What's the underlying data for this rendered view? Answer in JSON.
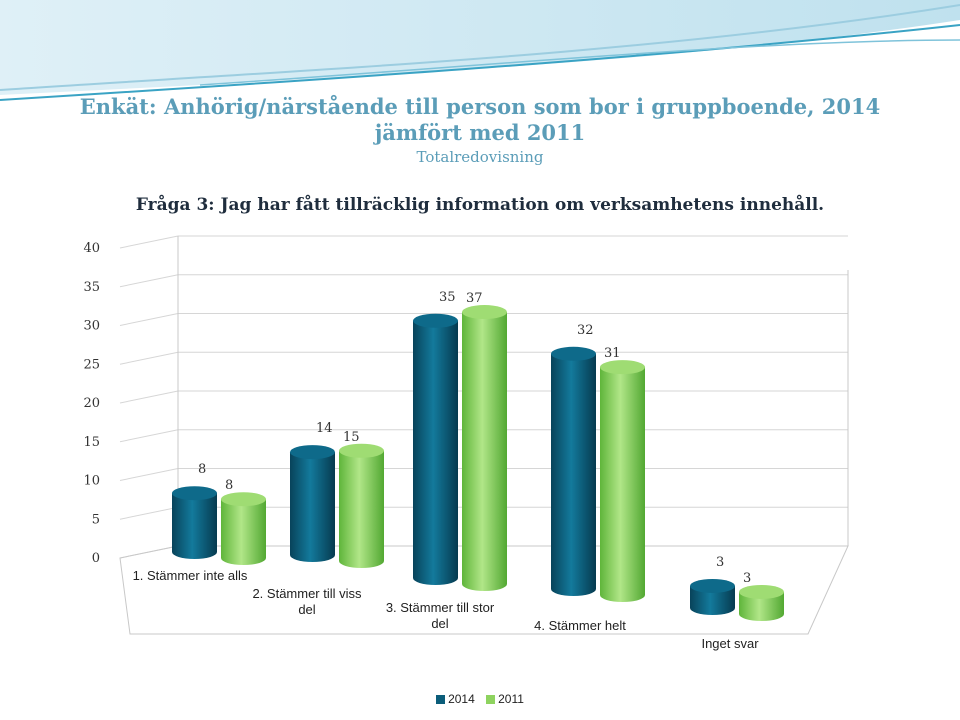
{
  "title": "Enkät: Anhörig/närstående till person som bor i gruppboende, 2014 jämfört med 2011",
  "subtitle": "Totalredovisning",
  "question": "Fråga 3: Jag har fått tillräcklig information om verksamhetens innehåll.",
  "colors": {
    "title": "#5b9db8",
    "series_2014": "#0b5d7a",
    "series_2011": "#8ed35f"
  },
  "chart_data": {
    "type": "bar",
    "style": "3d-cylinder",
    "categories": [
      "1. Stämmer inte alls",
      "2. Stämmer till viss del",
      "3. Stämmer till stor del",
      "4. Stämmer helt",
      "Inget svar"
    ],
    "series": [
      {
        "name": "2014",
        "values": [
          8,
          14,
          35,
          32,
          3
        ]
      },
      {
        "name": "2011",
        "values": [
          8,
          15,
          37,
          31,
          3
        ]
      }
    ],
    "ylim": [
      0,
      40
    ],
    "yticks": [
      "0",
      "5",
      "10",
      "15",
      "20",
      "25",
      "30",
      "35",
      "40"
    ],
    "grid": true,
    "legend": "bottom"
  }
}
